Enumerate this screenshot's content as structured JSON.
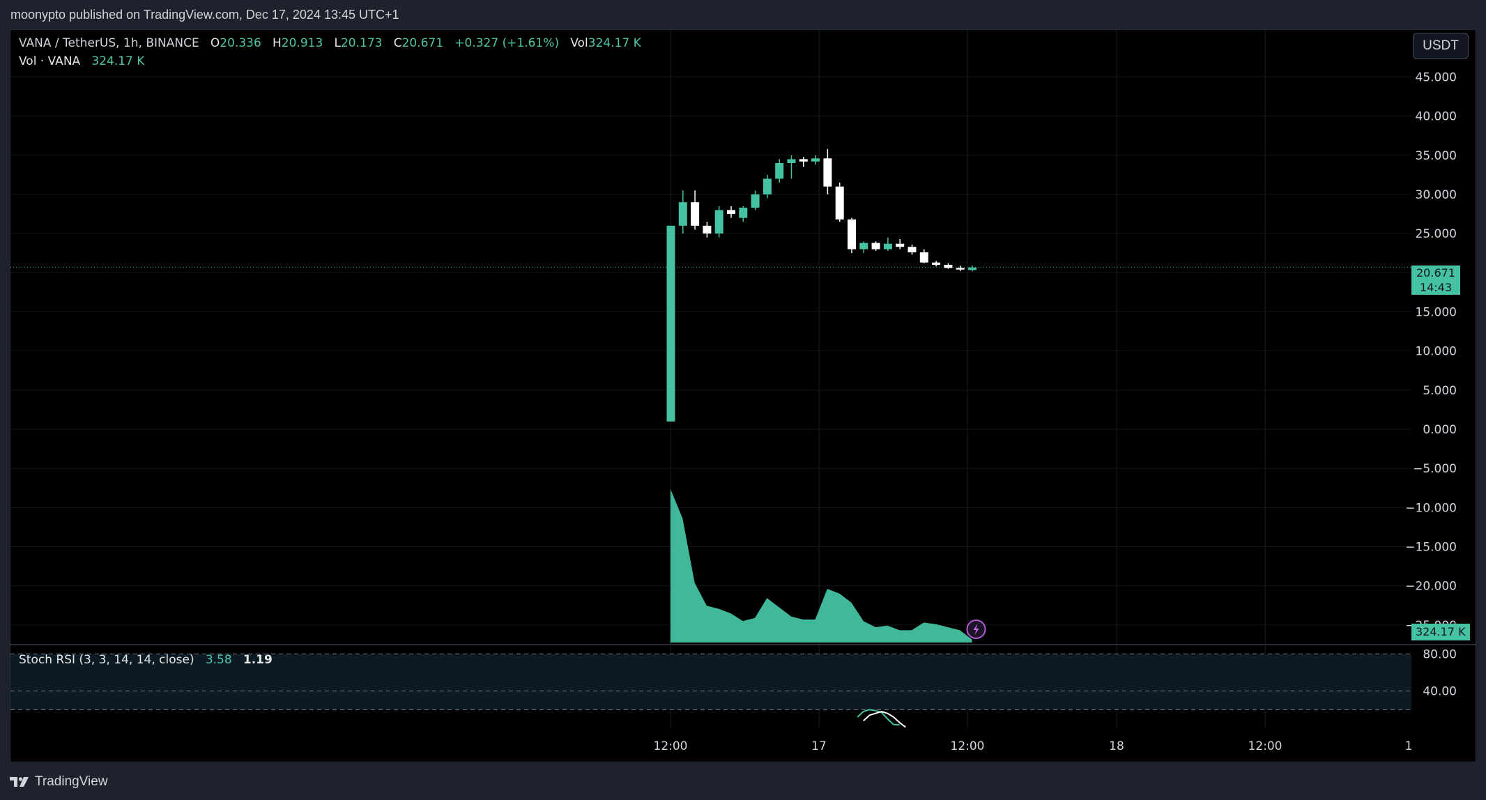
{
  "header": {
    "publish_text": "moonypto published on TradingView.com, Dec 17, 2024 13:45 UTC+1"
  },
  "legend": {
    "symbol": "VANA / TetherUS, 1h, BINANCE",
    "o_label": "O",
    "o_value": "20.336",
    "h_label": "H",
    "h_value": "20.913",
    "l_label": "L",
    "l_value": "20.173",
    "c_label": "C",
    "c_value": "20.671",
    "change": "+0.327 (+1.61%)",
    "vol_label": "Vol",
    "vol_value": "324.17 K",
    "vol_line_label": "Vol · VANA",
    "vol_line_value": "324.17 K",
    "stoch_label": "Stoch RSI (3, 3, 14, 14, close)",
    "stoch_k": "3.58",
    "stoch_d": "1.19"
  },
  "currency_button": "USDT",
  "last_price": {
    "price": "20.671",
    "countdown": "14:43"
  },
  "volume_label": "324.17 K",
  "footer": {
    "brand": "TradingView"
  },
  "colors": {
    "up": "#45c2a2",
    "down": "#ffffff",
    "background": "#000000",
    "frame": "#1e222d"
  },
  "icons": {
    "alert": "lightning-icon",
    "logo": "tradingview-logo-icon"
  },
  "chart_data": {
    "type": "candlestick",
    "title": "VANA / TetherUS, 1h, BINANCE",
    "price_axis": {
      "ticks": [
        "45.000",
        "40.000",
        "35.000",
        "30.000",
        "25.000",
        "20.000",
        "15.000",
        "10.000",
        "5.000",
        "0.000",
        "−5.000",
        "−10.000",
        "−15.000",
        "−20.000",
        "−25.000"
      ],
      "tick_values": [
        45,
        40,
        35,
        30,
        25,
        20,
        15,
        10,
        5,
        0,
        -5,
        -10,
        -15,
        -20,
        -25
      ],
      "range": [
        -27.5,
        51
      ]
    },
    "stoch_axis": {
      "ticks": [
        "80.00",
        "40.00"
      ],
      "tick_values": [
        80,
        40
      ],
      "range": [
        0,
        90
      ],
      "bands": [
        80,
        40,
        20
      ]
    },
    "time_axis": {
      "labels": [
        "12:00",
        "17",
        "12:00",
        "18",
        "12:00",
        "1"
      ]
    },
    "candles": [
      {
        "o": 1.0,
        "h": 26.0,
        "l": 1.0,
        "c": 26.0
      },
      {
        "o": 26.0,
        "h": 30.5,
        "l": 25.0,
        "c": 29.0
      },
      {
        "o": 29.0,
        "h": 30.5,
        "l": 25.5,
        "c": 26.0
      },
      {
        "o": 26.0,
        "h": 26.5,
        "l": 24.5,
        "c": 25.0
      },
      {
        "o": 25.0,
        "h": 28.5,
        "l": 24.5,
        "c": 28.0
      },
      {
        "o": 28.0,
        "h": 28.5,
        "l": 27.0,
        "c": 27.5
      },
      {
        "o": 27.0,
        "h": 28.5,
        "l": 26.5,
        "c": 28.3
      },
      {
        "o": 28.3,
        "h": 30.5,
        "l": 28.0,
        "c": 30.0
      },
      {
        "o": 30.0,
        "h": 32.5,
        "l": 29.5,
        "c": 32.0
      },
      {
        "o": 32.0,
        "h": 34.5,
        "l": 31.5,
        "c": 34.0
      },
      {
        "o": 34.0,
        "h": 35.0,
        "l": 32.0,
        "c": 34.5
      },
      {
        "o": 34.5,
        "h": 34.8,
        "l": 33.5,
        "c": 34.2
      },
      {
        "o": 34.2,
        "h": 35.0,
        "l": 33.8,
        "c": 34.6
      },
      {
        "o": 34.6,
        "h": 35.8,
        "l": 30.0,
        "c": 31.0
      },
      {
        "o": 31.0,
        "h": 31.5,
        "l": 26.5,
        "c": 26.8
      },
      {
        "o": 26.8,
        "h": 27.0,
        "l": 22.5,
        "c": 23.0
      },
      {
        "o": 23.0,
        "h": 24.0,
        "l": 22.5,
        "c": 23.8
      },
      {
        "o": 23.8,
        "h": 24.0,
        "l": 22.8,
        "c": 23.0
      },
      {
        "o": 23.0,
        "h": 24.5,
        "l": 22.8,
        "c": 23.7
      },
      {
        "o": 23.7,
        "h": 24.3,
        "l": 23.0,
        "c": 23.3
      },
      {
        "o": 23.3,
        "h": 23.6,
        "l": 22.3,
        "c": 22.6
      },
      {
        "o": 22.6,
        "h": 23.0,
        "l": 21.2,
        "c": 21.3
      },
      {
        "o": 21.3,
        "h": 21.5,
        "l": 20.8,
        "c": 21.0
      },
      {
        "o": 21.0,
        "h": 21.2,
        "l": 20.5,
        "c": 20.6
      },
      {
        "o": 20.6,
        "h": 20.9,
        "l": 20.2,
        "c": 20.4
      },
      {
        "o": 20.336,
        "h": 20.913,
        "l": 20.173,
        "c": 20.671
      }
    ],
    "volume": [
      1.0,
      0.81,
      0.39,
      0.24,
      0.22,
      0.19,
      0.14,
      0.16,
      0.29,
      0.23,
      0.17,
      0.15,
      0.15,
      0.35,
      0.32,
      0.26,
      0.14,
      0.1,
      0.11,
      0.08,
      0.08,
      0.13,
      0.12,
      0.1,
      0.08,
      0.02
    ],
    "volume_unit": "fraction of max volume",
    "stoch_k_series": [
      12,
      18,
      20,
      19,
      17,
      10,
      4,
      3.58
    ],
    "stoch_d_series": [
      8,
      14,
      16,
      18,
      16,
      12,
      6,
      1.19
    ]
  }
}
